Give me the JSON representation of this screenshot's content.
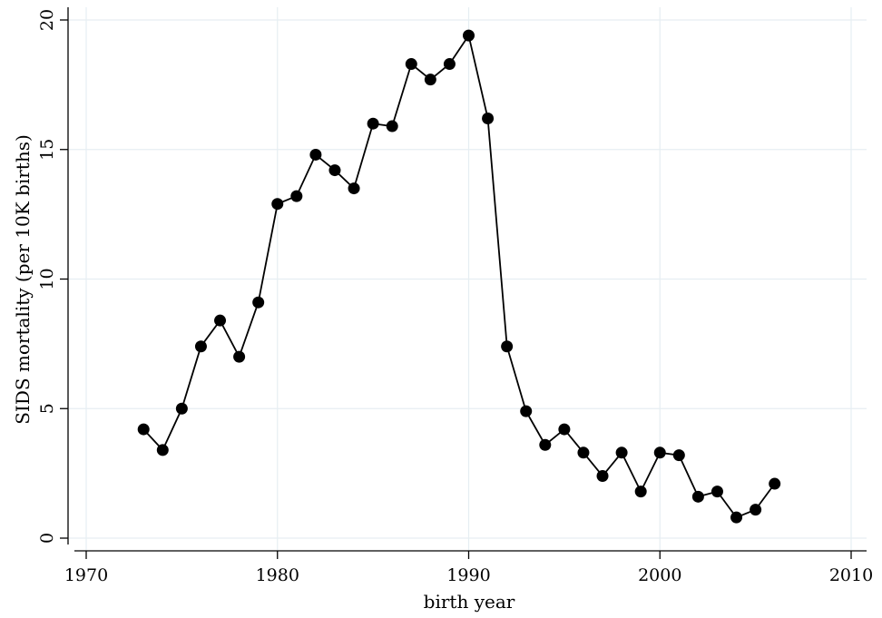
{
  "chart_data": {
    "type": "line",
    "title": "",
    "xlabel": "birth year",
    "ylabel": "SIDS mortality (per 10K births)",
    "xlim": [
      1970,
      2010
    ],
    "ylim": [
      0,
      20
    ],
    "x_ticks": [
      1970,
      1980,
      1990,
      2000,
      2010
    ],
    "y_ticks": [
      0,
      5,
      10,
      15,
      20
    ],
    "grid": true,
    "legend": "none",
    "colors": {
      "line": "#000000",
      "marker": "#000000",
      "grid": "#e6eef2",
      "background": "#ffffff"
    },
    "series": [
      {
        "x": [
          1973,
          1974,
          1975,
          1976,
          1977,
          1978,
          1979,
          1980,
          1981,
          1982,
          1983,
          1984,
          1985,
          1986,
          1987,
          1988,
          1989,
          1990,
          1991,
          1992,
          1993,
          1994,
          1995,
          1996,
          1997,
          1998,
          1999,
          2000,
          2001,
          2002,
          2003,
          2004,
          2005,
          2006
        ],
        "values": [
          4.2,
          3.4,
          5.0,
          7.4,
          8.4,
          7.0,
          9.1,
          12.9,
          13.2,
          14.8,
          14.2,
          13.5,
          16.0,
          15.9,
          18.3,
          17.7,
          18.3,
          19.4,
          16.2,
          7.4,
          4.9,
          3.6,
          4.2,
          3.3,
          2.4,
          3.3,
          1.8,
          3.3,
          3.2,
          1.6,
          1.8,
          0.8,
          1.1,
          2.1
        ]
      }
    ]
  }
}
